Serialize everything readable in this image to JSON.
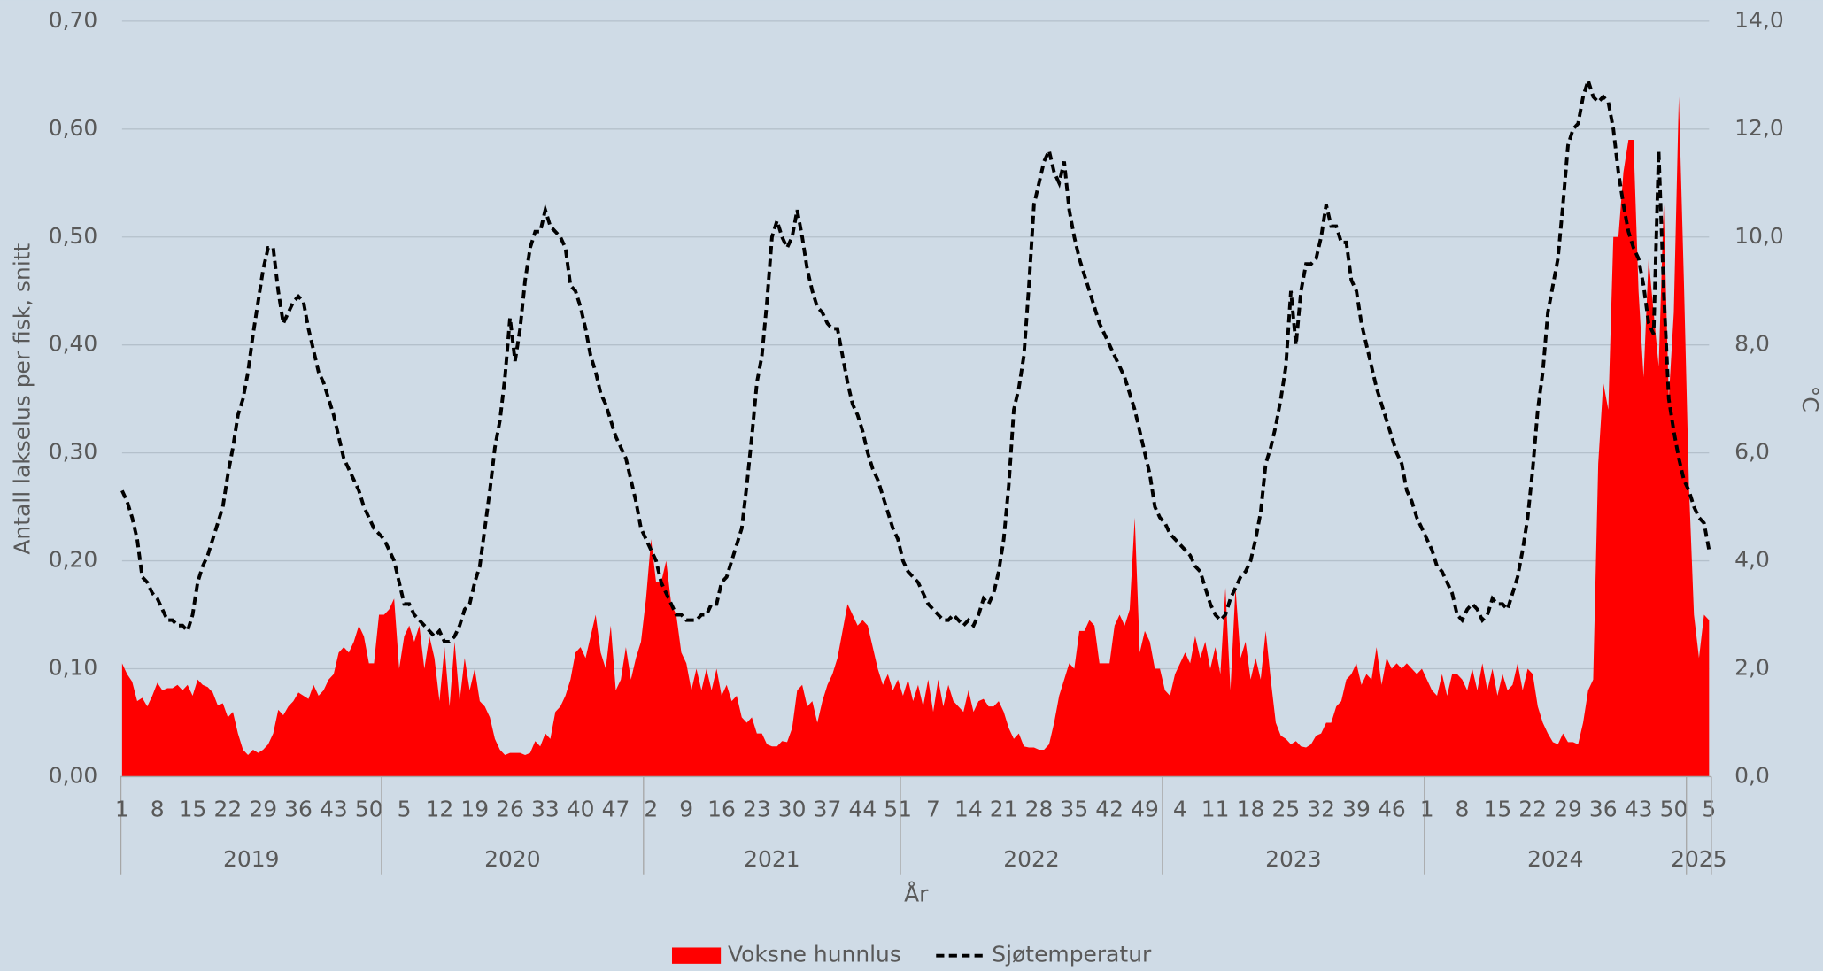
{
  "chart_data": {
    "type": "combo",
    "y_label": "Antall lakselus per fisk, snitt",
    "y2_label": "°C",
    "x_label": "År",
    "years": [
      "2019",
      "2020",
      "2021",
      "2022",
      "2023",
      "2024",
      "2025"
    ],
    "week_labels": [
      [
        1,
        null,
        null,
        null,
        null,
        null,
        null,
        8,
        null,
        null,
        null,
        null,
        null,
        null,
        15,
        null,
        null,
        null,
        null,
        null,
        null,
        22,
        null,
        null,
        null,
        null,
        null,
        null,
        29,
        null,
        null,
        null,
        null,
        null,
        null,
        36,
        null,
        null,
        null,
        null,
        null,
        null,
        43,
        null,
        null,
        null,
        null,
        null,
        null,
        50,
        null,
        null
      ],
      [
        null,
        null,
        null,
        null,
        5,
        null,
        null,
        null,
        null,
        null,
        null,
        12,
        null,
        null,
        null,
        null,
        null,
        null,
        19,
        null,
        null,
        null,
        null,
        null,
        null,
        26,
        null,
        null,
        null,
        null,
        null,
        null,
        33,
        null,
        null,
        null,
        null,
        null,
        null,
        40,
        null,
        null,
        null,
        null,
        null,
        null,
        47,
        null,
        null,
        null,
        null,
        null
      ],
      [
        null,
        2,
        null,
        null,
        null,
        null,
        null,
        null,
        9,
        null,
        null,
        null,
        null,
        null,
        null,
        16,
        null,
        null,
        null,
        null,
        null,
        null,
        23,
        null,
        null,
        null,
        null,
        null,
        null,
        30,
        null,
        null,
        null,
        null,
        null,
        null,
        37,
        null,
        null,
        null,
        null,
        null,
        null,
        44,
        null,
        null,
        null,
        null,
        null,
        null,
        51
      ],
      [
        null,
        null,
        null,
        null,
        null,
        null,
        7,
        null,
        null,
        null,
        null,
        null,
        null,
        14,
        null,
        null,
        null,
        null,
        null,
        null,
        21,
        null,
        null,
        null,
        null,
        null,
        null,
        28,
        null,
        null,
        null,
        null,
        null,
        null,
        35,
        null,
        null,
        null,
        null,
        null,
        null,
        42,
        null,
        null,
        null,
        null,
        null,
        null,
        49,
        null,
        null,
        null
      ],
      [
        null,
        null,
        null,
        4,
        null,
        null,
        null,
        null,
        null,
        null,
        11,
        null,
        null,
        null,
        null,
        null,
        null,
        18,
        null,
        null,
        null,
        null,
        null,
        null,
        25,
        null,
        null,
        null,
        null,
        null,
        null,
        32,
        null,
        null,
        null,
        null,
        null,
        null,
        39,
        null,
        null,
        null,
        null,
        null,
        null,
        46,
        null,
        null,
        null,
        null,
        null,
        null
      ],
      [
        1,
        null,
        null,
        null,
        null,
        null,
        null,
        8,
        null,
        null,
        null,
        null,
        null,
        null,
        15,
        null,
        null,
        null,
        null,
        null,
        null,
        22,
        null,
        null,
        null,
        null,
        null,
        null,
        29,
        null,
        null,
        null,
        null,
        null,
        null,
        36,
        null,
        null,
        null,
        null,
        null,
        null,
        43,
        null,
        null,
        null,
        null,
        null,
        null,
        50,
        null,
        null
      ],
      [
        null,
        null,
        null,
        null,
        5
      ]
    ],
    "series": [
      {
        "name": "Voksne hunnlus",
        "type": "area",
        "color": "#ff0000",
        "values": [
          0.105,
          0.095,
          0.088,
          0.07,
          0.073,
          0.065,
          0.075,
          0.087,
          0.08,
          0.082,
          0.082,
          0.085,
          0.08,
          0.085,
          0.075,
          0.09,
          0.085,
          0.083,
          0.078,
          0.066,
          0.068,
          0.055,
          0.06,
          0.04,
          0.025,
          0.02,
          0.025,
          0.022,
          0.025,
          0.03,
          0.04,
          0.062,
          0.057,
          0.065,
          0.07,
          0.078,
          0.075,
          0.072,
          0.085,
          0.075,
          0.08,
          0.09,
          0.095,
          0.115,
          0.12,
          0.115,
          0.125,
          0.14,
          0.13,
          0.105,
          0.105,
          0.15,
          0.15,
          0.155,
          0.165,
          0.1,
          0.13,
          0.14,
          0.125,
          0.14,
          0.1,
          0.13,
          0.11,
          0.07,
          0.12,
          0.065,
          0.125,
          0.07,
          0.11,
          0.08,
          0.1,
          0.07,
          0.065,
          0.055,
          0.035,
          0.025,
          0.02,
          0.022,
          0.022,
          0.022,
          0.02,
          0.022,
          0.033,
          0.028,
          0.04,
          0.035,
          0.06,
          0.065,
          0.075,
          0.09,
          0.115,
          0.12,
          0.11,
          0.13,
          0.15,
          0.115,
          0.1,
          0.14,
          0.08,
          0.09,
          0.12,
          0.09,
          0.11,
          0.125,
          0.165,
          0.22,
          0.18,
          0.18,
          0.2,
          0.16,
          0.15,
          0.115,
          0.105,
          0.08,
          0.1,
          0.08,
          0.1,
          0.08,
          0.1,
          0.075,
          0.085,
          0.07,
          0.075,
          0.055,
          0.05,
          0.055,
          0.04,
          0.04,
          0.03,
          0.028,
          0.028,
          0.033,
          0.032,
          0.045,
          0.08,
          0.085,
          0.065,
          0.07,
          0.05,
          0.07,
          0.085,
          0.095,
          0.11,
          0.135,
          0.16,
          0.15,
          0.14,
          0.145,
          0.14,
          0.12,
          0.1,
          0.085,
          0.095,
          0.08,
          0.09,
          0.075,
          0.09,
          0.07,
          0.085,
          0.065,
          0.09,
          0.06,
          0.09,
          0.065,
          0.085,
          0.07,
          0.065,
          0.06,
          0.08,
          0.06,
          0.07,
          0.072,
          0.065,
          0.065,
          0.07,
          0.06,
          0.045,
          0.035,
          0.04,
          0.028,
          0.027,
          0.027,
          0.025,
          0.025,
          0.03,
          0.05,
          0.075,
          0.09,
          0.105,
          0.1,
          0.135,
          0.135,
          0.145,
          0.14,
          0.105,
          0.105,
          0.105,
          0.14,
          0.15,
          0.14,
          0.155,
          0.24,
          0.115,
          0.135,
          0.125,
          0.1,
          0.1,
          0.08,
          0.075,
          0.095,
          0.105,
          0.115,
          0.105,
          0.13,
          0.11,
          0.125,
          0.1,
          0.12,
          0.095,
          0.175,
          0.08,
          0.175,
          0.11,
          0.125,
          0.09,
          0.11,
          0.09,
          0.135,
          0.09,
          0.05,
          0.038,
          0.035,
          0.03,
          0.033,
          0.028,
          0.027,
          0.03,
          0.038,
          0.04,
          0.05,
          0.05,
          0.065,
          0.07,
          0.09,
          0.095,
          0.105,
          0.085,
          0.095,
          0.09,
          0.12,
          0.085,
          0.11,
          0.1,
          0.105,
          0.1,
          0.105,
          0.1,
          0.095,
          0.1,
          0.09,
          0.08,
          0.075,
          0.095,
          0.075,
          0.095,
          0.095,
          0.09,
          0.08,
          0.1,
          0.08,
          0.105,
          0.08,
          0.1,
          0.075,
          0.095,
          0.08,
          0.085,
          0.105,
          0.08,
          0.1,
          0.095,
          0.065,
          0.05,
          0.04,
          0.032,
          0.03,
          0.04,
          0.032,
          0.032,
          0.03,
          0.05,
          0.08,
          0.09,
          0.29,
          0.365,
          0.34,
          0.5,
          0.5,
          0.56,
          0.59,
          0.59,
          0.45,
          0.37,
          0.48,
          0.43,
          0.38,
          0.53,
          0.35,
          0.43,
          0.63,
          0.46,
          0.27,
          0.15,
          0.11,
          0.15,
          0.145
        ]
      },
      {
        "name": "Sjøtemperatur",
        "type": "line",
        "color": "#000000",
        "dashed": true,
        "axis": "y2",
        "values": [
          5.3,
          5.1,
          4.8,
          4.4,
          3.7,
          3.6,
          3.4,
          3.3,
          3.1,
          2.9,
          2.9,
          2.8,
          2.8,
          2.7,
          3.0,
          3.6,
          3.9,
          4.1,
          4.4,
          4.7,
          5.0,
          5.6,
          6.1,
          6.7,
          7.0,
          7.5,
          8.2,
          8.8,
          9.4,
          9.8,
          9.8,
          9.0,
          8.4,
          8.6,
          8.8,
          8.9,
          8.8,
          8.3,
          7.9,
          7.5,
          7.3,
          7.0,
          6.7,
          6.3,
          5.9,
          5.7,
          5.5,
          5.3,
          5.0,
          4.8,
          4.6,
          4.5,
          4.4,
          4.2,
          4.0,
          3.6,
          3.2,
          3.2,
          3.0,
          2.9,
          2.8,
          2.7,
          2.6,
          2.7,
          2.5,
          2.5,
          2.6,
          2.8,
          3.1,
          3.2,
          3.6,
          3.9,
          4.6,
          5.3,
          6.1,
          6.6,
          7.4,
          8.5,
          7.7,
          8.3,
          9.2,
          9.8,
          10.1,
          10.1,
          10.5,
          10.2,
          10.1,
          10.0,
          9.8,
          9.1,
          9.0,
          8.7,
          8.3,
          7.8,
          7.5,
          7.1,
          6.9,
          6.6,
          6.3,
          6.1,
          5.9,
          5.5,
          5.1,
          4.6,
          4.4,
          4.2,
          4.0,
          3.6,
          3.4,
          3.2,
          3.0,
          3.0,
          2.9,
          2.9,
          2.9,
          3.0,
          3.0,
          3.2,
          3.2,
          3.6,
          3.7,
          4.0,
          4.3,
          4.6,
          5.4,
          6.3,
          7.3,
          7.8,
          8.8,
          10.0,
          10.3,
          10.0,
          9.8,
          10.0,
          10.5,
          10.0,
          9.4,
          9.0,
          8.7,
          8.6,
          8.4,
          8.3,
          8.3,
          7.8,
          7.3,
          6.9,
          6.7,
          6.4,
          6.0,
          5.7,
          5.5,
          5.2,
          4.9,
          4.6,
          4.4,
          4.0,
          3.8,
          3.7,
          3.6,
          3.4,
          3.2,
          3.1,
          3.0,
          2.9,
          2.9,
          3.0,
          2.9,
          2.8,
          2.9,
          2.8,
          3.0,
          3.3,
          3.2,
          3.4,
          3.8,
          4.4,
          5.4,
          6.8,
          7.2,
          7.8,
          9.1,
          10.6,
          11.0,
          11.4,
          11.6,
          11.2,
          11.0,
          11.4,
          10.5,
          10.0,
          9.6,
          9.3,
          9.0,
          8.7,
          8.4,
          8.2,
          8.0,
          7.8,
          7.6,
          7.4,
          7.1,
          6.8,
          6.4,
          6.0,
          5.6,
          5.0,
          4.8,
          4.7,
          4.5,
          4.4,
          4.3,
          4.2,
          4.1,
          3.9,
          3.8,
          3.5,
          3.2,
          3.0,
          2.9,
          3.0,
          3.3,
          3.5,
          3.7,
          3.8,
          4.0,
          4.4,
          4.9,
          5.8,
          6.1,
          6.5,
          7.0,
          7.6,
          9.0,
          8.0,
          9.0,
          9.5,
          9.5,
          9.6,
          10.0,
          10.6,
          10.2,
          10.2,
          9.9,
          9.9,
          9.2,
          9.0,
          8.4,
          8.0,
          7.6,
          7.2,
          6.9,
          6.6,
          6.3,
          6.0,
          5.8,
          5.3,
          5.1,
          4.8,
          4.6,
          4.4,
          4.2,
          3.9,
          3.8,
          3.6,
          3.4,
          3.0,
          2.9,
          3.1,
          3.2,
          3.1,
          2.9,
          3.0,
          3.3,
          3.2,
          3.2,
          3.1,
          3.4,
          3.7,
          4.2,
          4.8,
          5.7,
          6.8,
          7.5,
          8.6,
          9.1,
          9.6,
          10.6,
          11.7,
          12.0,
          12.1,
          12.6,
          12.9,
          12.6,
          12.5,
          12.6,
          12.5,
          12.0,
          11.2,
          10.6,
          10.1,
          9.8,
          9.6,
          9.1,
          8.4,
          8.2,
          11.6,
          9.0,
          7.0,
          6.4,
          5.9,
          5.5,
          5.3,
          5.0,
          4.8,
          4.7,
          4.2
        ]
      }
    ],
    "ylim": [
      0,
      0.7
    ],
    "yticks": [
      {
        "value": 0,
        "label": "0,00"
      },
      {
        "value": 0.1,
        "label": "0,10"
      },
      {
        "value": 0.2,
        "label": "0,20"
      },
      {
        "value": 0.3,
        "label": "0,30"
      },
      {
        "value": 0.4,
        "label": "0,40"
      },
      {
        "value": 0.5,
        "label": "0,50"
      },
      {
        "value": 0.6,
        "label": "0,60"
      },
      {
        "value": 0.7,
        "label": "0,70"
      }
    ],
    "y2lim": [
      0,
      14
    ],
    "y2ticks": [
      {
        "value": 0,
        "label": "0,0"
      },
      {
        "value": 2,
        "label": "2,0"
      },
      {
        "value": 4,
        "label": "4,0"
      },
      {
        "value": 6,
        "label": "6,0"
      },
      {
        "value": 8,
        "label": "8,0"
      },
      {
        "value": 10,
        "label": "10,0"
      },
      {
        "value": 12,
        "label": "12,0"
      },
      {
        "value": 14,
        "label": "14,0"
      }
    ],
    "grid": true,
    "legend": "bottom"
  }
}
